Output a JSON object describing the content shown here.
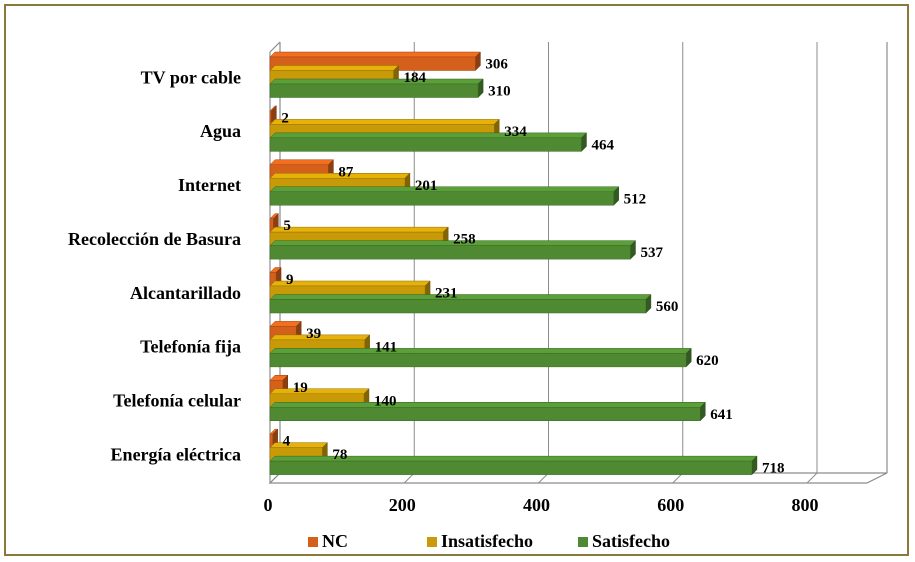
{
  "chart_data": {
    "type": "bar",
    "orientation": "horizontal",
    "style": "3d-clustered",
    "categories": [
      "TV por cable",
      "Agua",
      "Internet",
      "Recolección de Basura",
      "Alcantarillado",
      "Telefonía fija",
      "Telefonía celular",
      "Energía eléctrica"
    ],
    "series": [
      {
        "name": "NC",
        "color": "#d4601c",
        "values": [
          306,
          2,
          87,
          5,
          9,
          39,
          19,
          4
        ]
      },
      {
        "name": "Insatisfecho",
        "color": "#c89a08",
        "values": [
          184,
          334,
          201,
          258,
          231,
          141,
          140,
          78
        ]
      },
      {
        "name": "Satisfecho",
        "color": "#4f8a32",
        "values": [
          310,
          464,
          512,
          537,
          560,
          620,
          641,
          718
        ]
      }
    ],
    "xlim": [
      0,
      800
    ],
    "xticks": [
      "0",
      "200",
      "400",
      "600",
      "800"
    ],
    "grid": true,
    "legend_position": "bottom"
  }
}
